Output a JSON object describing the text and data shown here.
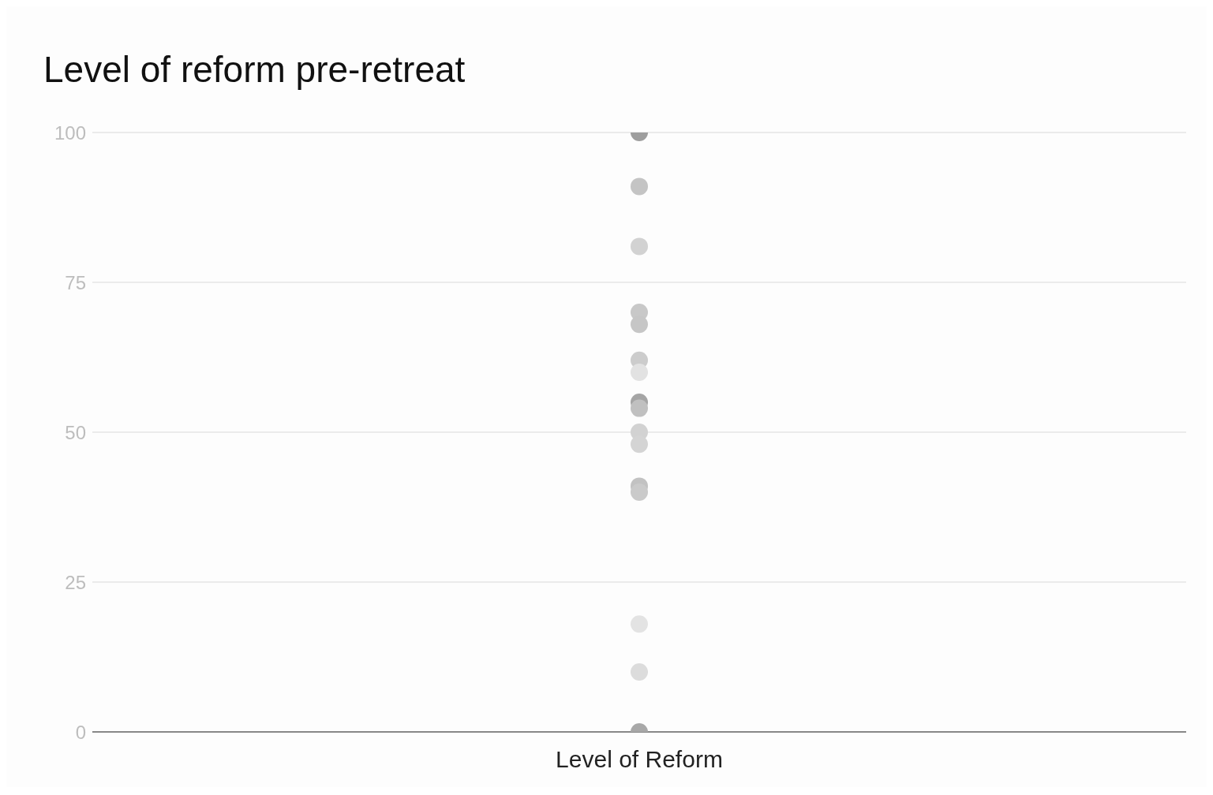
{
  "chart_data": {
    "type": "scatter",
    "title": "Level of reform pre-retreat",
    "categories": [
      "Level of Reform"
    ],
    "series": [
      {
        "color": "#9e9e9e",
        "values": [
          100
        ]
      },
      {
        "color": "#c4c4c4",
        "values": [
          91
        ]
      },
      {
        "color": "#d2d2d2",
        "values": [
          81
        ]
      },
      {
        "color": "#c8c8c8",
        "values": [
          70
        ]
      },
      {
        "color": "#c6c6c6",
        "values": [
          68
        ]
      },
      {
        "color": "#cccccc",
        "values": [
          62
        ]
      },
      {
        "color": "#e2e2e2",
        "values": [
          60
        ]
      },
      {
        "color": "#a5a5a5",
        "values": [
          55
        ]
      },
      {
        "color": "#c0c0c0",
        "values": [
          54
        ]
      },
      {
        "color": "#d2d2d2",
        "values": [
          50
        ]
      },
      {
        "color": "#d4d4d4",
        "values": [
          48
        ]
      },
      {
        "color": "#c2c2c2",
        "values": [
          41
        ]
      },
      {
        "color": "#cacaca",
        "values": [
          40
        ]
      },
      {
        "color": "#e3e3e3",
        "values": [
          18
        ]
      },
      {
        "color": "#dcdcdc",
        "values": [
          10
        ]
      },
      {
        "color": "#a8a8a8",
        "values": [
          0
        ]
      }
    ],
    "ylim": [
      0,
      100
    ],
    "yticks": [
      0,
      25,
      50,
      75,
      100
    ],
    "grid": "y",
    "marker": "circle"
  }
}
